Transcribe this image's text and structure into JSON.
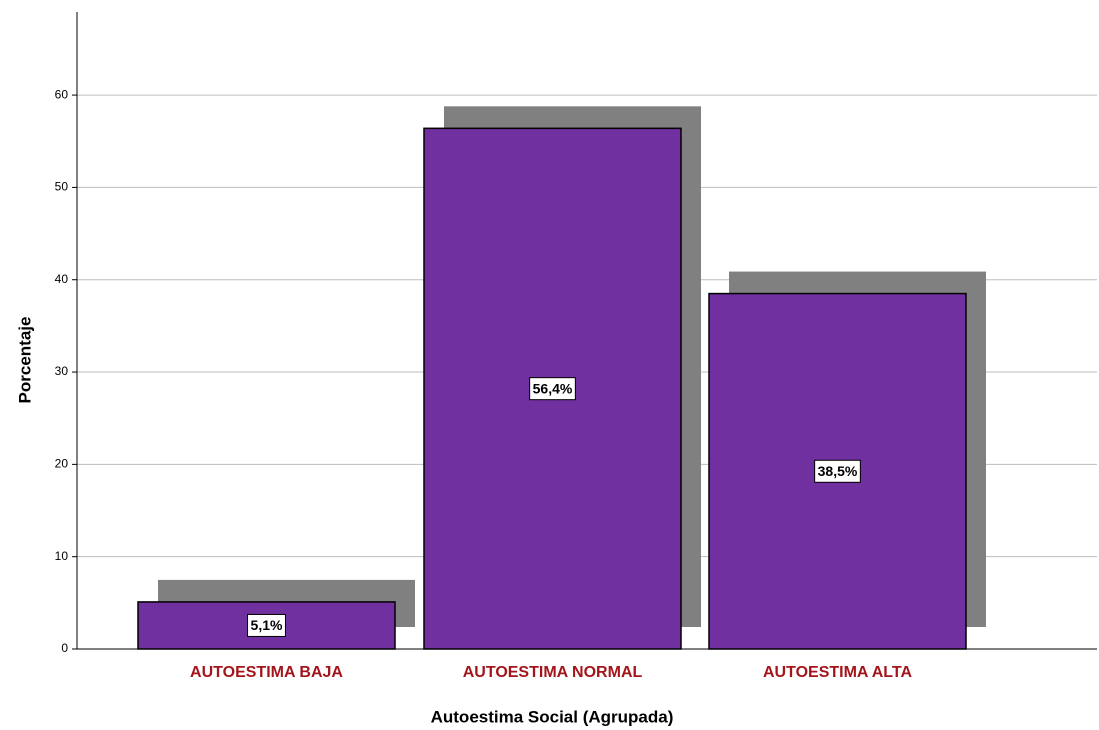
{
  "chart_data": {
    "type": "bar",
    "xlabel": "Autoestima Social (Agrupada)",
    "ylabel": "Porcentaje",
    "categories": [
      "AUTOESTIMA BAJA",
      "AUTOESTIMA NORMAL",
      "AUTOESTIMA ALTA"
    ],
    "values": [
      5.1,
      56.4,
      38.5
    ],
    "value_labels": [
      "5,1%",
      "56,4%",
      "38,5%"
    ],
    "color": "#7030a0",
    "shadow_color": "#808080",
    "category_color": "#a3151b",
    "ylim": [
      0,
      69
    ],
    "yticks": [
      0,
      10,
      20,
      30,
      40,
      50,
      60
    ],
    "grid": true
  }
}
